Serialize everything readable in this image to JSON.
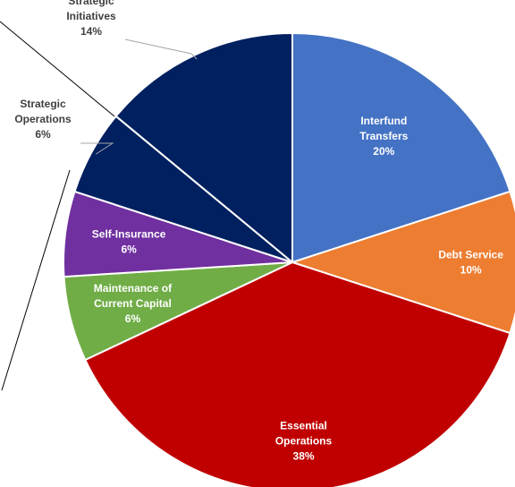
{
  "chart_data": {
    "type": "pie",
    "title": "",
    "start_angle_deg": 0,
    "direction": "clockwise",
    "slices": [
      {
        "name": "Interfund Transfers",
        "label_lines": [
          "Interfund",
          "Transfers"
        ],
        "percent_label": "20%",
        "value": 20,
        "color": "#4472C4",
        "label_color": "#ffffff"
      },
      {
        "name": "Debt Service",
        "label_lines": [
          "Debt Service"
        ],
        "percent_label": "10%",
        "value": 10,
        "color": "#ED7D31",
        "label_color": "#ffffff"
      },
      {
        "name": "Essential Operations",
        "label_lines": [
          "Essential",
          "Operations"
        ],
        "percent_label": "38%",
        "value": 38,
        "color": "#C00000",
        "label_color": "#ffffff"
      },
      {
        "name": "Maintenance of Current Capital",
        "label_lines": [
          "Maintenance of",
          "Current Capital"
        ],
        "percent_label": "6%",
        "value": 6,
        "color": "#70AD47",
        "label_color": "#ffffff"
      },
      {
        "name": "Self-Insurance",
        "label_lines": [
          "Self-Insurance"
        ],
        "percent_label": "6%",
        "value": 6,
        "color": "#7030A0",
        "label_color": "#ffffff"
      },
      {
        "name": "Strategic Operations",
        "label_lines": [
          "Strategic",
          "Operations"
        ],
        "percent_label": "6%",
        "value": 6,
        "color": "#002060",
        "label_color": "#404040"
      },
      {
        "name": "Strategic Initiatives",
        "label_lines": [
          "Strategic",
          "Initiatives"
        ],
        "percent_label": "14%",
        "value": 14,
        "color": "#002060",
        "label_color": "#404040"
      }
    ]
  }
}
